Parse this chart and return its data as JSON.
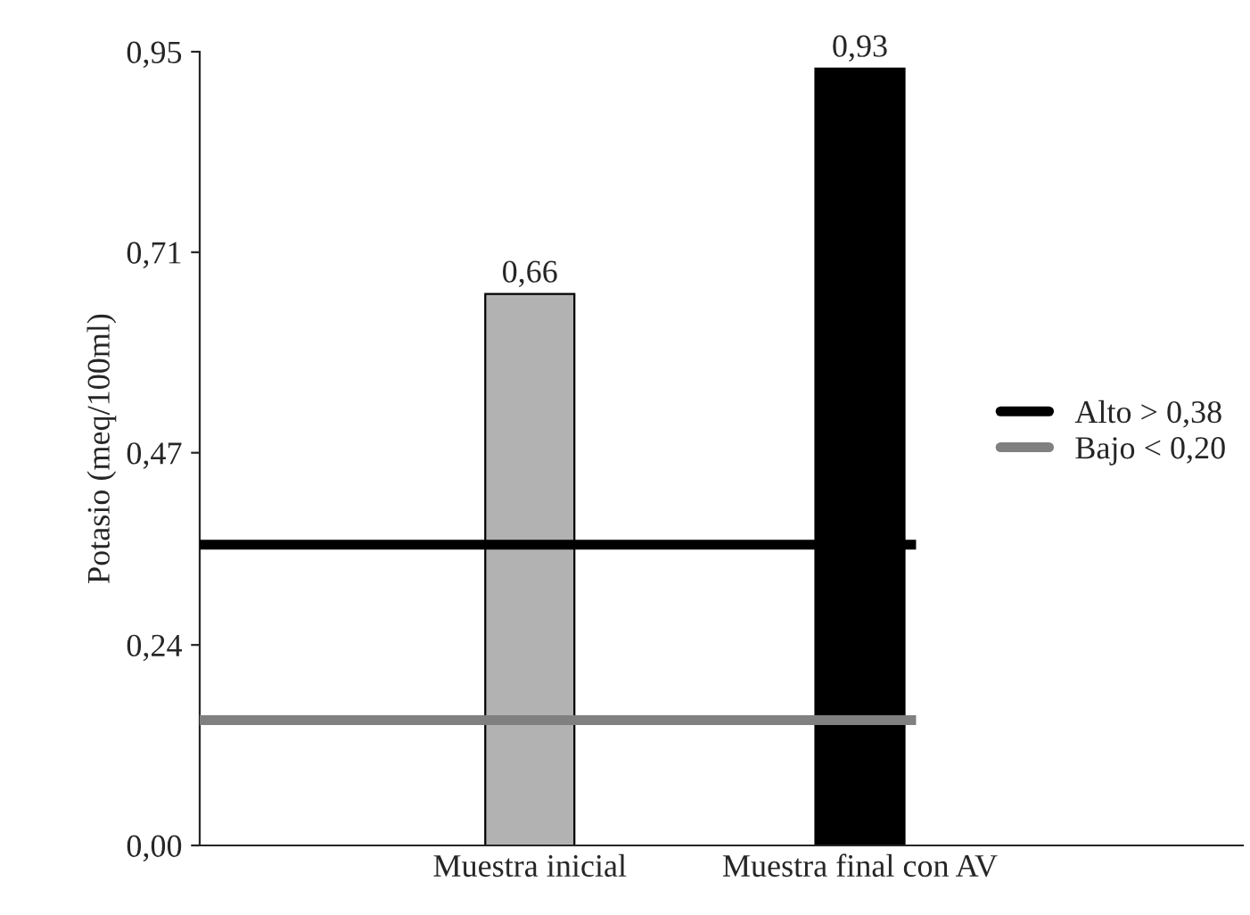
{
  "chart_data": {
    "type": "bar",
    "ylabel": "Potasio (meq/100ml)",
    "categories": [
      "Muestra inicial",
      "Muestra final con AV"
    ],
    "values": [
      0.66,
      0.93
    ],
    "colors": [
      "#b2b2b2",
      "#000000"
    ],
    "value_labels": [
      "0,66",
      "0,93"
    ],
    "ylim": [
      0,
      0.95
    ],
    "yticks": [
      {
        "value": 0,
        "label": "0,00"
      },
      {
        "value": 0.24,
        "label": "0,24"
      },
      {
        "value": 0.47,
        "label": "0,47"
      },
      {
        "value": 0.71,
        "label": "0,71"
      },
      {
        "value": 0.95,
        "label": "0,95"
      }
    ],
    "ref_lines": [
      {
        "axis": "y",
        "value": 0.36,
        "label": "Alto > 0,38",
        "color": "#000000"
      },
      {
        "axis": "y",
        "value": 0.15,
        "label": "Bajo < 0,20",
        "color": "#808080"
      }
    ],
    "legend": "right",
    "grid": false
  }
}
